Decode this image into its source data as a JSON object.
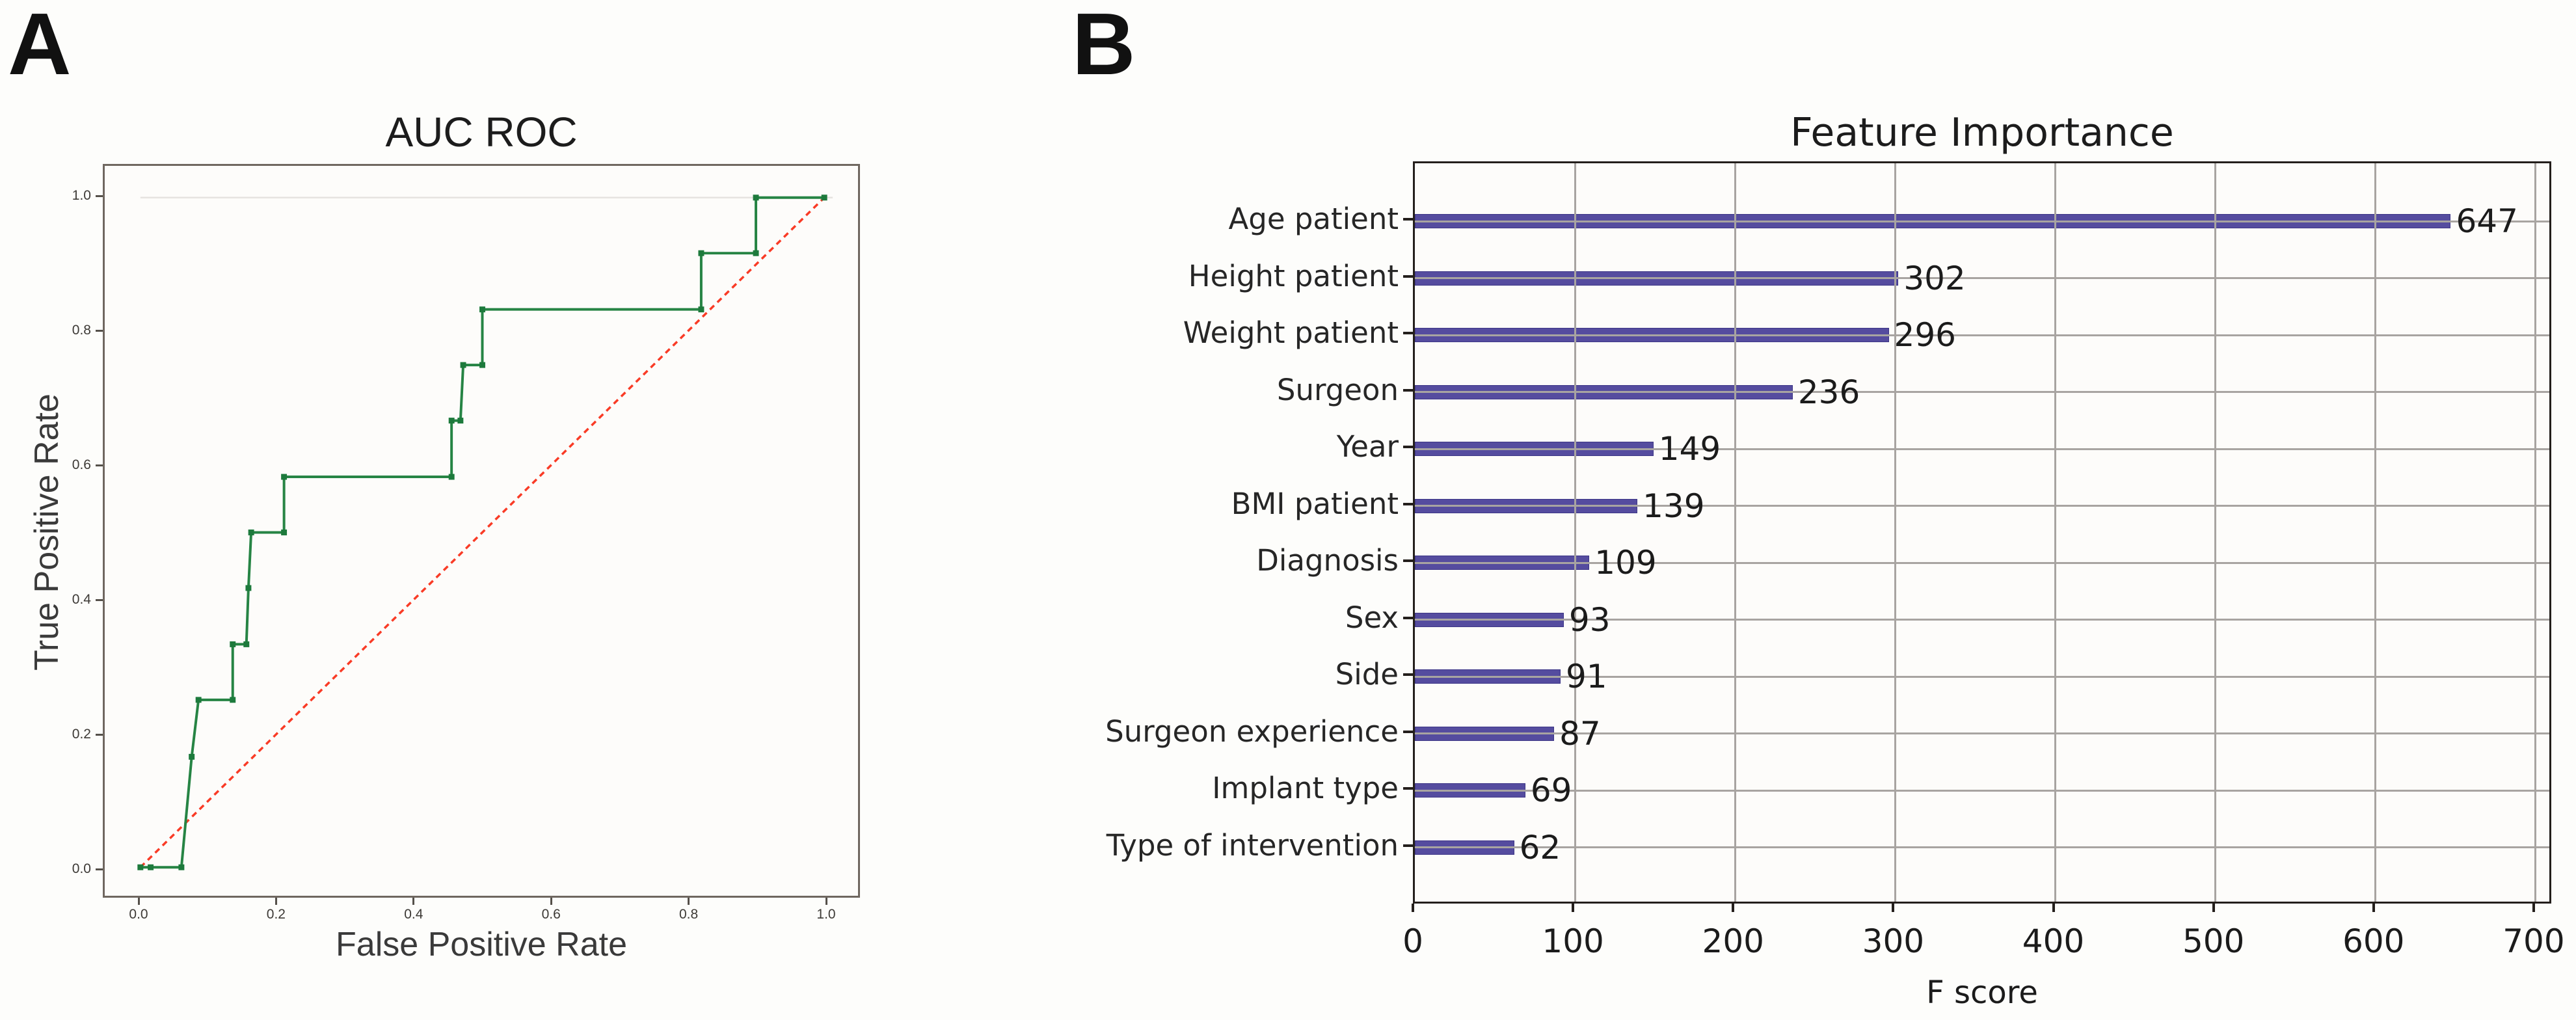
{
  "figure": {
    "panel_a": {
      "letter": "A",
      "title": "AUC ROC",
      "xlabel": "False Positive Rate",
      "ylabel": "True Positive Rate"
    },
    "panel_b": {
      "letter": "B",
      "title": "Feature Importance",
      "xlabel": "F score"
    }
  },
  "colors": {
    "roc_line": "#268444",
    "roc_marker": "#1d7a3c",
    "chance_line": "#f93b26",
    "faint_top_line": "#e6e3e0",
    "bar_fill": "#554c9f",
    "bar_edge": "#3d3686",
    "grid": "#a8a4a1",
    "spine_a": "#6f6760",
    "spine_b": "#241f1c"
  },
  "chart_data": [
    {
      "type": "line",
      "panel": "A",
      "title": "AUC ROC",
      "xlabel": "False Positive Rate",
      "ylabel": "True Positive Rate",
      "x_ticks": [
        0.0,
        0.2,
        0.4,
        0.6,
        0.8,
        1.0
      ],
      "y_ticks": [
        0.0,
        0.2,
        0.4,
        0.6,
        0.8,
        1.0
      ],
      "xlim": [
        -0.05,
        1.05
      ],
      "ylim": [
        -0.05,
        1.05
      ],
      "grid": false,
      "legend": null,
      "series": [
        {
          "name": "roc-curve",
          "style": "step",
          "color": "#268444",
          "marker": "square",
          "marker_color": "#1d7a3c",
          "points": [
            [
              0.0,
              0.0
            ],
            [
              0.015,
              0.0
            ],
            [
              0.06,
              0.0
            ],
            [
              0.075,
              0.165
            ],
            [
              0.085,
              0.25
            ],
            [
              0.135,
              0.25
            ],
            [
              0.135,
              0.333
            ],
            [
              0.155,
              0.333
            ],
            [
              0.158,
              0.417
            ],
            [
              0.162,
              0.5
            ],
            [
              0.21,
              0.5
            ],
            [
              0.21,
              0.583
            ],
            [
              0.455,
              0.583
            ],
            [
              0.455,
              0.667
            ],
            [
              0.468,
              0.667
            ],
            [
              0.472,
              0.75
            ],
            [
              0.5,
              0.75
            ],
            [
              0.5,
              0.833
            ],
            [
              0.82,
              0.833
            ],
            [
              0.82,
              0.917
            ],
            [
              0.9,
              0.917
            ],
            [
              0.9,
              1.0
            ],
            [
              1.0,
              1.0
            ]
          ]
        },
        {
          "name": "chance-diagonal",
          "style": "dashed",
          "color": "#f93b26",
          "points": [
            [
              0.0,
              0.0
            ],
            [
              1.0,
              1.0
            ]
          ]
        }
      ],
      "reference_line": {
        "y": 1.0,
        "color": "#e6e3e0"
      }
    },
    {
      "type": "bar",
      "panel": "B",
      "orientation": "horizontal",
      "title": "Feature Importance",
      "xlabel": "F score",
      "categories": [
        "Age patient",
        "Height patient",
        "Weight patient",
        "Surgeon",
        "Year",
        "BMI patient",
        "Diagnosis",
        "Sex",
        "Side",
        "Surgeon experience",
        "Implant type",
        "Type of intervention"
      ],
      "values": [
        647,
        302,
        296,
        236,
        149,
        139,
        109,
        93,
        91,
        87,
        69,
        62
      ],
      "x_ticks": [
        0,
        100,
        200,
        300,
        400,
        500,
        600,
        700
      ],
      "xlim": [
        0,
        711
      ],
      "grid": true,
      "bar_color": "#554c9f",
      "bar_edge_color": "#3d3686",
      "grid_color": "#a8a4a1",
      "legend": null
    }
  ]
}
